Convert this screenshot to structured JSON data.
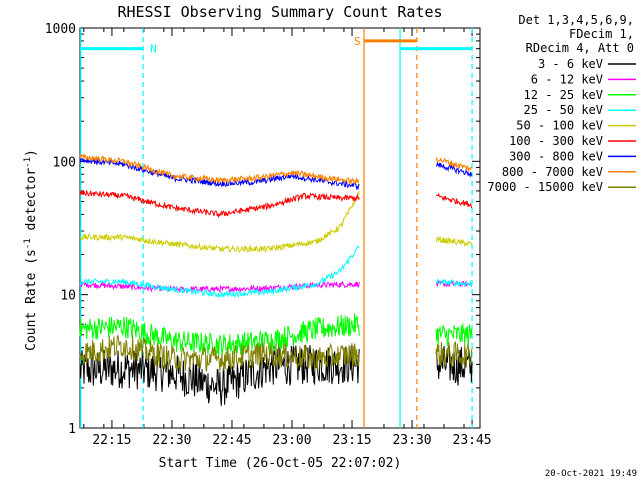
{
  "chart_data": {
    "type": "line",
    "title": "RHESSI Observing Summary Count Rates",
    "xlabel": "Start Time (26-Oct-05 22:07:02)",
    "ylabel_parts": [
      "Count Rate (s",
      "-1",
      " detector",
      "-1",
      ")"
    ],
    "ylabel": "Count Rate (s-1 detector-1)",
    "yscale": "log",
    "ylim": [
      1,
      1000
    ],
    "xlim_minutes": [
      22.117,
      23.783
    ],
    "x_tick_labels": [
      "22:15",
      "22:30",
      "22:45",
      "23:00",
      "23:15",
      "23:30",
      "23:45"
    ],
    "x_ticks_hours": [
      22.25,
      22.5,
      22.75,
      23.0,
      23.25,
      23.5,
      23.75
    ],
    "y_tick_labels": [
      "1",
      "10",
      "100",
      "1000"
    ],
    "y_ticks": [
      1,
      10,
      100,
      1000
    ],
    "legend_header": [
      "Det 1,3,4,5,6,9,",
      "FDecim 1,",
      "RDecim 4, Att 0"
    ],
    "legend_placement": "outside-right",
    "series": [
      {
        "name": "3 - 6 keV",
        "color": "#000000",
        "segments": [
          {
            "x": [
              22.117,
              22.3,
              22.5,
              22.7,
              22.9,
              23.1,
              23.28
            ],
            "y": [
              2.7,
              2.8,
              2.6,
              2.0,
              2.9,
              3.0,
              3.0
            ]
          },
          {
            "x": [
              23.6,
              23.75
            ],
            "y": [
              3.0,
              2.9
            ]
          }
        ]
      },
      {
        "name": "6 - 12 keV",
        "color": "#ff00ff",
        "segments": [
          {
            "x": [
              22.117,
              22.3,
              22.5,
              22.7,
              22.9,
              23.1,
              23.28
            ],
            "y": [
              12,
              11.5,
              11,
              11,
              11.2,
              11.8,
              12
            ]
          },
          {
            "x": [
              23.6,
              23.75
            ],
            "y": [
              12,
              12
            ]
          }
        ]
      },
      {
        "name": "12 - 25 keV",
        "color": "#00ff00",
        "segments": [
          {
            "x": [
              22.117,
              22.3,
              22.5,
              22.7,
              22.9,
              23.1,
              23.28
            ],
            "y": [
              5.5,
              5.8,
              4.5,
              4.2,
              4.5,
              5.5,
              6.0
            ]
          },
          {
            "x": [
              23.6,
              23.75
            ],
            "y": [
              5.0,
              5.0
            ]
          }
        ]
      },
      {
        "name": "25 - 50 keV",
        "color": "#00ffff",
        "segments": [
          {
            "x": [
              22.117,
              22.3,
              22.5,
              22.7,
              22.9,
              23.1,
              23.2,
              23.28
            ],
            "y": [
              12.5,
              12.5,
              11,
              10,
              10.5,
              12,
              15,
              23
            ]
          },
          {
            "x": [
              23.6,
              23.75
            ],
            "y": [
              12.5,
              12
            ]
          }
        ]
      },
      {
        "name": "50 - 100 keV",
        "color": "#cccc00",
        "segments": [
          {
            "x": [
              22.117,
              22.3,
              22.5,
              22.7,
              22.9,
              23.1,
              23.2,
              23.28
            ],
            "y": [
              27,
              27,
              24,
              22,
              22,
              25,
              32,
              58
            ]
          },
          {
            "x": [
              23.6,
              23.75
            ],
            "y": [
              26,
              24
            ]
          }
        ]
      },
      {
        "name": "100 - 300 keV",
        "color": "#ff0000",
        "segments": [
          {
            "x": [
              22.117,
              22.3,
              22.5,
              22.7,
              22.9,
              23.05,
              23.2,
              23.28
            ],
            "y": [
              58,
              55,
              45,
              40,
              46,
              55,
              53,
              53
            ]
          },
          {
            "x": [
              23.6,
              23.75
            ],
            "y": [
              55,
              47
            ]
          }
        ]
      },
      {
        "name": "300 - 800 keV",
        "color": "#0000ff",
        "segments": [
          {
            "x": [
              22.117,
              22.3,
              22.5,
              22.7,
              22.85,
              23.0,
              23.15,
              23.28
            ],
            "y": [
              103,
              95,
              75,
              68,
              70,
              78,
              70,
              65
            ]
          },
          {
            "x": [
              23.6,
              23.75
            ],
            "y": [
              95,
              80
            ]
          }
        ]
      },
      {
        "name": "800 - 7000 keV",
        "color": "#ff8000",
        "segments": [
          {
            "x": [
              22.117,
              22.3,
              22.5,
              22.7,
              22.85,
              23.0,
              23.15,
              23.28
            ],
            "y": [
              108,
              100,
              78,
              72,
              75,
              82,
              75,
              70
            ]
          },
          {
            "x": [
              23.6,
              23.75
            ],
            "y": [
              105,
              87
            ]
          }
        ]
      },
      {
        "name": "7000 - 15000 keV",
        "color": "#808000",
        "segments": [
          {
            "x": [
              22.117,
              22.3,
              22.5,
              22.7,
              22.9,
              23.1,
              23.28
            ],
            "y": [
              3.6,
              4.2,
              3.3,
              3.3,
              3.6,
              3.3,
              3.6
            ]
          },
          {
            "x": [
              23.6,
              23.75
            ],
            "y": [
              3.6,
              3.5
            ]
          }
        ]
      }
    ],
    "flag_bars": [
      {
        "label": "N",
        "color": "#00ffff",
        "x_start": 22.117,
        "x_end": 22.38,
        "y": 700
      },
      {
        "label": "S",
        "color": "#ff8000",
        "x_start": 23.3,
        "x_end": 23.52,
        "y": 800
      },
      {
        "label": "",
        "color": "#00ffff",
        "x_start": 23.45,
        "x_end": 23.75,
        "y": 700
      }
    ],
    "vertical_markers": [
      {
        "x": 22.12,
        "color": "#00ffff",
        "style": "solid"
      },
      {
        "x": 22.38,
        "color": "#00ffff",
        "style": "dashed"
      },
      {
        "x": 23.3,
        "color": "#ff8000",
        "style": "solid"
      },
      {
        "x": 23.45,
        "color": "#00ffff",
        "style": "solid"
      },
      {
        "x": 23.52,
        "color": "#ff8000",
        "style": "dashed"
      },
      {
        "x": 23.75,
        "color": "#00ffff",
        "style": "dashed"
      }
    ]
  },
  "footer_timestamp": "20-Oct-2021 19:49"
}
